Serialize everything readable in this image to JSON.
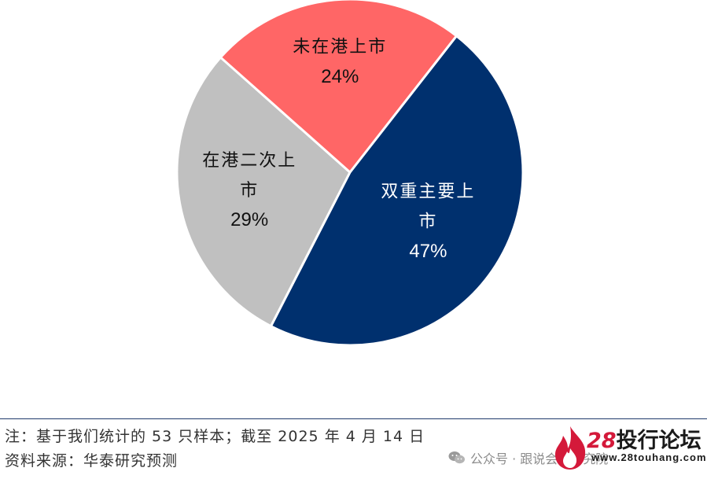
{
  "chart_data": {
    "type": "pie",
    "title": "",
    "slices": [
      {
        "label_lines": [
          "双重主要上",
          "市"
        ],
        "pct_text": "47%",
        "value": 47,
        "color": "#00306e",
        "text_color": "#ffffff"
      },
      {
        "label_lines": [
          "在港二次上",
          "市"
        ],
        "pct_text": "29%",
        "value": 29,
        "color": "#c0c0c0",
        "text_color": "#111111"
      },
      {
        "label_lines": [
          "未在港上市"
        ],
        "pct_text": "24%",
        "value": 24,
        "color": "#ff6666",
        "text_color": "#111111"
      }
    ],
    "start_angle_deg": 52,
    "direction": "clockwise",
    "legend": "none"
  },
  "footer": {
    "note": "注：基于我们统计的 53 只样本；截至 2025 年 4 月 14 日",
    "source": "资料来源：华泰研究预测"
  },
  "watermark": {
    "account": "公众号 · 跟说会规研究院",
    "forum_number": "28",
    "forum_name": "投行论坛",
    "forum_url": "www.28touhang.com"
  },
  "colors": {
    "divider": "#1f3a6b",
    "forum_accent": "#d4193a"
  }
}
